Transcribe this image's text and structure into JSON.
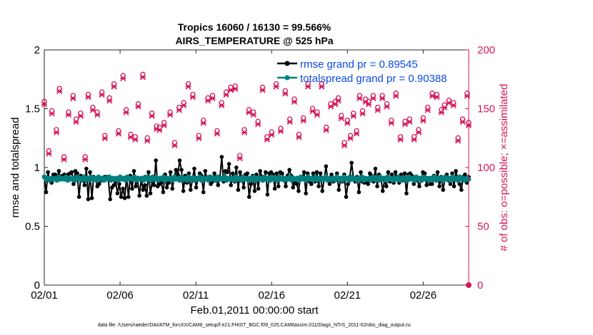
{
  "chart_data": {
    "type": "line",
    "title": "Tropics 16060 / 16130 = 99.566%",
    "subtitle": "AIRS_TEMPERATURE @ 525 hPa",
    "xlabel": "Feb.01,2011 00:00:00 start",
    "ylabel": "rmse and totalspread",
    "y2label": "# of obs: o=possible; ×=assimilated",
    "footer": "data file: /Users/raeder/DAI/ATM_forcXX/CAM6_setup/f.e21.FHIST_BGC.f09_025.CAM6assim.011/Diags_NTrS_2011-02/obs_diag_output.nc",
    "xlim": [
      0,
      28
    ],
    "ylim": [
      0,
      2
    ],
    "y2lim": [
      0,
      200
    ],
    "xticks": [
      0,
      5,
      10,
      15,
      20,
      25
    ],
    "xticklabels": [
      "02/01",
      "02/06",
      "02/11",
      "02/16",
      "02/21",
      "02/26"
    ],
    "yticks": [
      0,
      0.5,
      1,
      1.5,
      2
    ],
    "yticklabels": [
      "0",
      "0.5",
      "1",
      "1.5",
      "2"
    ],
    "y2ticks": [
      0,
      50,
      100,
      150,
      200
    ],
    "y2ticklabels": [
      "0",
      "50",
      "100",
      "150",
      "200"
    ],
    "legend_position": "top-right",
    "colors": {
      "rmse": "#000000",
      "spread": "#008080",
      "obs": "#d6165c",
      "legend_text": "#0a4be6",
      "axis": "#262626"
    },
    "series": [
      {
        "name": "rmse grand pr = 0.89545",
        "axis": "left",
        "values": [
          0.92,
          0.79,
          0.96,
          0.89,
          0.87,
          0.94,
          0.94,
          0.91,
          0.97,
          0.9,
          0.93,
          0.94,
          0.9,
          0.94,
          0.95,
          0.96,
          0.86,
          0.97,
          0.95,
          0.75,
          0.93,
          0.91,
          0.85,
          0.99,
          0.73,
          0.96,
          0.74,
          0.92,
          0.9,
          0.84,
          0.86,
          0.89,
          0.89,
          0.92,
          0.92,
          0.9,
          0.73,
          0.83,
          0.85,
          0.88,
          0.78,
          0.86,
          0.75,
          0.82,
          0.74,
          0.92,
          0.75,
          0.93,
          0.82,
          0.97,
          0.84,
          0.9,
          0.76,
          0.9,
          0.81,
          0.85,
          0.76,
          0.96,
          0.78,
          0.88,
          0.85,
          1.06,
          0.84,
          0.86,
          0.87,
          0.79,
          0.94,
          0.83,
          0.87,
          0.96,
          0.82,
          0.91,
          0.98,
          0.94,
          1.06,
          0.98,
          0.8,
          0.93,
          0.87,
          0.95,
          0.81,
          0.9,
          0.99,
          0.83,
          0.9,
          0.95,
          0.93,
          0.79,
          0.97,
          0.9,
          0.92,
          0.86,
          0.88,
          0.95,
          0.89,
          0.85,
          0.91,
          1.09,
          0.88,
          0.97,
          0.96,
          1.03,
          0.85,
          0.95,
          0.88,
          1.0,
          0.81,
          0.96,
          0.92,
          0.83,
          0.94,
          0.95,
          0.75,
          0.86,
          0.93,
          0.8,
          0.94,
          0.82,
          0.97,
          0.92,
          0.9,
          0.96,
          0.77,
          0.95,
          0.96,
          0.94,
          0.82,
          0.95,
          0.84,
          0.96,
          0.95,
          0.91,
          0.84,
          0.93,
          0.98,
          0.93,
          0.83,
          0.87,
          0.86,
          0.8,
          0.92,
          0.91,
          0.96,
          0.78,
          0.95,
          0.88,
          0.86,
          0.95,
          0.88,
          0.96,
          0.84,
          0.95,
          0.8,
          0.9,
          1.01,
          0.89,
          0.86,
          0.94,
          0.88,
          0.9,
          0.95,
          0.81,
          0.9,
          0.88,
          0.94,
          0.75,
          0.86,
          0.92,
          1.04,
          0.91,
          0.88,
          0.92,
          0.79,
          0.96,
          0.88,
          0.87,
          0.89,
          0.86,
          0.95,
          0.93,
          0.88,
          0.99,
          0.84,
          0.94,
          0.91,
          0.8,
          0.89,
          0.84,
          0.96,
          0.88,
          0.94,
          0.87,
          0.96,
          0.9,
          0.87,
          0.94,
          0.89,
          0.95,
          0.78,
          0.94,
          0.95,
          0.93,
          0.86,
          0.9,
          0.89,
          0.84,
          0.9,
          0.96,
          0.95,
          0.85,
          0.91,
          0.86,
          0.86,
          0.93,
          0.89,
          0.96,
          0.84,
          0.92,
          0.81,
          0.9,
          0.94,
          0.89,
          0.86,
          0.95,
          0.84,
          0.97,
          0.9,
          0.86,
          0.81,
          0.92,
          0.94,
          0.87,
          0.92
        ]
      },
      {
        "name": "totalspread grand pr = 0.90388",
        "axis": "left",
        "values": [
          0.92,
          0.9,
          0.91,
          0.89,
          0.91,
          0.9,
          0.91,
          0.89,
          0.92,
          0.9,
          0.91,
          0.9,
          0.92,
          0.89,
          0.91,
          0.9,
          0.91,
          0.89,
          0.92,
          0.9,
          0.91,
          0.89,
          0.92,
          0.9,
          0.91,
          0.89,
          0.92,
          0.9,
          0.91,
          0.89,
          0.92,
          0.9,
          0.91,
          0.89,
          0.91,
          0.9,
          0.92,
          0.89,
          0.91,
          0.9,
          0.91,
          0.89,
          0.92,
          0.9,
          0.91,
          0.89,
          0.92,
          0.9,
          0.91,
          0.9,
          0.92,
          0.89,
          0.91,
          0.9,
          0.91,
          0.89,
          0.92,
          0.9,
          0.91,
          0.89,
          0.92,
          0.9,
          0.91,
          0.89,
          0.91,
          0.9,
          0.92,
          0.89,
          0.91,
          0.9,
          0.91,
          0.89,
          0.92,
          0.9,
          0.91,
          0.89,
          0.92,
          0.9,
          0.91,
          0.89,
          0.92,
          0.9,
          0.91,
          0.89,
          0.91,
          0.9,
          0.92,
          0.89,
          0.91,
          0.9,
          0.91,
          0.89,
          0.92,
          0.9,
          0.91,
          0.89,
          0.92,
          0.9,
          0.91,
          0.9,
          0.92,
          0.89,
          0.91,
          0.9,
          0.91,
          0.89,
          0.92,
          0.9,
          0.91,
          0.89,
          0.92,
          0.9,
          0.91,
          0.89,
          0.91,
          0.9,
          0.92,
          0.89,
          0.91,
          0.9,
          0.91,
          0.89,
          0.92,
          0.9,
          0.91,
          0.89,
          0.92,
          0.9,
          0.91,
          0.89,
          0.92,
          0.9,
          0.91,
          0.89,
          0.91,
          0.9,
          0.92,
          0.89,
          0.91,
          0.9,
          0.91,
          0.89,
          0.92,
          0.9,
          0.91,
          0.89,
          0.92,
          0.9,
          0.91,
          0.89,
          0.92,
          0.9,
          0.91,
          0.89,
          0.91,
          0.9,
          0.92,
          0.89,
          0.91,
          0.9,
          0.91,
          0.89,
          0.92,
          0.9,
          0.91,
          0.89,
          0.92,
          0.9,
          0.91,
          0.89,
          0.92,
          0.9,
          0.91,
          0.89,
          0.91,
          0.9,
          0.92,
          0.89,
          0.91,
          0.9,
          0.91,
          0.89,
          0.92,
          0.9,
          0.91,
          0.89,
          0.92,
          0.9,
          0.91,
          0.89,
          0.92,
          0.9,
          0.91,
          0.89,
          0.91,
          0.9,
          0.92,
          0.89,
          0.91,
          0.9,
          0.91,
          0.89,
          0.92,
          0.9,
          0.91,
          0.89,
          0.92,
          0.9,
          0.91,
          0.89,
          0.92,
          0.9,
          0.91,
          0.89,
          0.91,
          0.9,
          0.92,
          0.89,
          0.91,
          0.9,
          0.91,
          0.89,
          0.92,
          0.9,
          0.91,
          0.89,
          0.92,
          0.9,
          0.91,
          0.89,
          0.92,
          0.9,
          0.91,
          0.89,
          0.91,
          0.9
        ]
      }
    ],
    "obs": {
      "name": "# of obs",
      "axis": "right",
      "days": [
        0.0,
        0.3,
        0.5,
        0.8,
        1.0,
        1.3,
        1.6,
        1.9,
        2.1,
        2.4,
        2.7,
        2.9,
        3.2,
        3.5,
        3.8,
        4.0,
        4.3,
        4.6,
        4.9,
        5.2,
        5.4,
        5.7,
        6.0,
        6.2,
        6.5,
        6.8,
        7.1,
        7.4,
        7.6,
        7.9,
        8.3,
        8.6,
        8.9,
        9.2,
        9.5,
        9.8,
        10.2,
        10.5,
        10.8,
        11.1,
        11.4,
        11.7,
        12.0,
        12.3,
        12.6,
        12.9,
        13.2,
        13.5,
        13.8,
        14.1,
        14.4,
        14.7,
        15.0,
        15.3,
        15.6,
        15.9,
        16.2,
        16.5,
        16.8,
        17.1,
        17.4,
        17.7,
        18.0,
        18.3,
        18.6,
        18.9,
        19.2,
        19.4,
        19.6,
        19.8,
        20.0,
        20.2,
        20.4,
        20.6,
        20.8,
        21.0,
        21.2,
        21.4,
        21.7,
        22.0,
        22.3,
        22.6,
        22.9,
        23.2,
        23.5,
        23.8,
        24.1,
        24.4,
        24.7,
        25.0,
        25.3,
        25.6,
        25.9,
        26.2,
        26.4,
        26.7,
        27.0,
        27.3,
        27.6,
        27.9,
        28.0
      ],
      "counts": [
        155,
        113,
        147,
        131,
        166,
        108,
        146,
        160,
        140,
        145,
        108,
        161,
        150,
        146,
        163,
        126,
        158,
        170,
        130,
        177,
        148,
        127,
        125,
        153,
        178,
        124,
        145,
        134,
        133,
        137,
        146,
        120,
        150,
        154,
        170,
        161,
        126,
        139,
        158,
        160,
        130,
        154,
        163,
        167,
        168,
        109,
        131,
        148,
        146,
        138,
        167,
        125,
        129,
        170,
        132,
        164,
        140,
        157,
        127,
        141,
        170,
        149,
        146,
        170,
        133,
        153,
        155,
        158,
        143,
        120,
        139,
        126,
        145,
        130,
        160,
        147,
        157,
        155,
        160,
        150,
        160,
        153,
        139,
        162,
        125,
        138,
        140,
        125,
        131,
        141,
        150,
        162,
        161,
        148,
        152,
        156,
        154,
        124,
        140,
        162,
        137
      ]
    },
    "legend": [
      {
        "label": "rmse grand pr = 0.89545",
        "series": "rmse"
      },
      {
        "label": "totalspread grand pr = 0.90388",
        "series": "spread"
      }
    ]
  }
}
